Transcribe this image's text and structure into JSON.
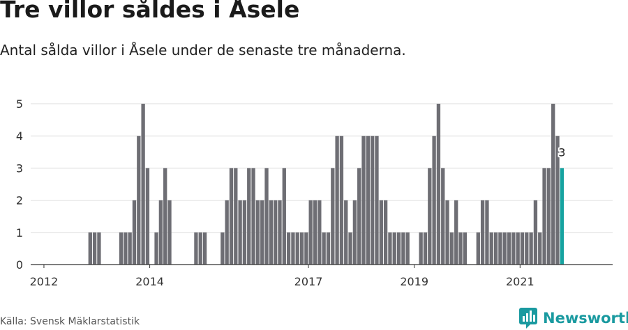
{
  "header": {
    "title": "Tre villor såldes i Åsele",
    "subtitle": "Antal sålda villor i Åsele under de senaste tre månaderna."
  },
  "footer": {
    "source": "Källa: Svensk Mäklarstatistik",
    "brand": "Newsworthy"
  },
  "colors": {
    "bar": "#6e6e74",
    "highlight": "#16a3a0",
    "grid": "#dddddd",
    "brand": "#1a9aa0"
  },
  "icons": {
    "brand_logo": "newsworthy-logo-icon"
  },
  "chart_data": {
    "type": "bar",
    "title": "Tre villor såldes i Åsele",
    "subtitle": "Antal sålda villor i Åsele under de senaste tre månaderna.",
    "x_axis": {
      "type": "date",
      "start": "2011-10",
      "end": "2022-10",
      "ticks": [
        "2012",
        "2014",
        "2017",
        "2019",
        "2021"
      ]
    },
    "y_axis": {
      "range": [
        0,
        5
      ],
      "ticks": [
        0,
        1,
        2,
        3,
        4,
        5
      ]
    },
    "grid": true,
    "highlighted_label": "3",
    "bars": [
      {
        "x": "2012-11",
        "y": 1
      },
      {
        "x": "2012-12",
        "y": 1
      },
      {
        "x": "2013-01",
        "y": 1
      },
      {
        "x": "2013-06",
        "y": 1
      },
      {
        "x": "2013-07",
        "y": 1
      },
      {
        "x": "2013-08",
        "y": 1
      },
      {
        "x": "2013-09",
        "y": 2
      },
      {
        "x": "2013-10",
        "y": 4
      },
      {
        "x": "2013-11",
        "y": 5
      },
      {
        "x": "2013-12",
        "y": 3
      },
      {
        "x": "2014-02",
        "y": 1
      },
      {
        "x": "2014-03",
        "y": 2
      },
      {
        "x": "2014-04",
        "y": 3
      },
      {
        "x": "2014-05",
        "y": 2
      },
      {
        "x": "2014-11",
        "y": 1
      },
      {
        "x": "2014-12",
        "y": 1
      },
      {
        "x": "2015-01",
        "y": 1
      },
      {
        "x": "2015-05",
        "y": 1
      },
      {
        "x": "2015-06",
        "y": 2
      },
      {
        "x": "2015-07",
        "y": 3
      },
      {
        "x": "2015-08",
        "y": 3
      },
      {
        "x": "2015-09",
        "y": 2
      },
      {
        "x": "2015-10",
        "y": 2
      },
      {
        "x": "2015-11",
        "y": 3
      },
      {
        "x": "2015-12",
        "y": 3
      },
      {
        "x": "2016-01",
        "y": 2
      },
      {
        "x": "2016-02",
        "y": 2
      },
      {
        "x": "2016-03",
        "y": 3
      },
      {
        "x": "2016-04",
        "y": 2
      },
      {
        "x": "2016-05",
        "y": 2
      },
      {
        "x": "2016-06",
        "y": 2
      },
      {
        "x": "2016-07",
        "y": 3
      },
      {
        "x": "2016-08",
        "y": 1
      },
      {
        "x": "2016-09",
        "y": 1
      },
      {
        "x": "2016-10",
        "y": 1
      },
      {
        "x": "2016-11",
        "y": 1
      },
      {
        "x": "2016-12",
        "y": 1
      },
      {
        "x": "2017-01",
        "y": 2
      },
      {
        "x": "2017-02",
        "y": 2
      },
      {
        "x": "2017-03",
        "y": 2
      },
      {
        "x": "2017-04",
        "y": 1
      },
      {
        "x": "2017-05",
        "y": 1
      },
      {
        "x": "2017-06",
        "y": 3
      },
      {
        "x": "2017-07",
        "y": 4
      },
      {
        "x": "2017-08",
        "y": 4
      },
      {
        "x": "2017-09",
        "y": 2
      },
      {
        "x": "2017-10",
        "y": 1
      },
      {
        "x": "2017-11",
        "y": 2
      },
      {
        "x": "2017-12",
        "y": 3
      },
      {
        "x": "2018-01",
        "y": 4
      },
      {
        "x": "2018-02",
        "y": 4
      },
      {
        "x": "2018-03",
        "y": 4
      },
      {
        "x": "2018-04",
        "y": 4
      },
      {
        "x": "2018-05",
        "y": 2
      },
      {
        "x": "2018-06",
        "y": 2
      },
      {
        "x": "2018-07",
        "y": 1
      },
      {
        "x": "2018-08",
        "y": 1
      },
      {
        "x": "2018-09",
        "y": 1
      },
      {
        "x": "2018-10",
        "y": 1
      },
      {
        "x": "2018-11",
        "y": 1
      },
      {
        "x": "2019-02",
        "y": 1
      },
      {
        "x": "2019-03",
        "y": 1
      },
      {
        "x": "2019-04",
        "y": 3
      },
      {
        "x": "2019-05",
        "y": 4
      },
      {
        "x": "2019-06",
        "y": 5
      },
      {
        "x": "2019-07",
        "y": 3
      },
      {
        "x": "2019-08",
        "y": 2
      },
      {
        "x": "2019-09",
        "y": 1
      },
      {
        "x": "2019-10",
        "y": 2
      },
      {
        "x": "2019-11",
        "y": 1
      },
      {
        "x": "2019-12",
        "y": 1
      },
      {
        "x": "2020-03",
        "y": 1
      },
      {
        "x": "2020-04",
        "y": 2
      },
      {
        "x": "2020-05",
        "y": 2
      },
      {
        "x": "2020-06",
        "y": 1
      },
      {
        "x": "2020-07",
        "y": 1
      },
      {
        "x": "2020-08",
        "y": 1
      },
      {
        "x": "2020-09",
        "y": 1
      },
      {
        "x": "2020-10",
        "y": 1
      },
      {
        "x": "2020-11",
        "y": 1
      },
      {
        "x": "2020-12",
        "y": 1
      },
      {
        "x": "2021-01",
        "y": 1
      },
      {
        "x": "2021-02",
        "y": 1
      },
      {
        "x": "2021-03",
        "y": 1
      },
      {
        "x": "2021-04",
        "y": 2
      },
      {
        "x": "2021-05",
        "y": 1
      },
      {
        "x": "2021-06",
        "y": 3
      },
      {
        "x": "2021-07",
        "y": 3
      },
      {
        "x": "2021-08",
        "y": 5
      },
      {
        "x": "2021-09",
        "y": 4
      },
      {
        "x": "2021-10",
        "y": 3,
        "highlight": true
      }
    ]
  }
}
